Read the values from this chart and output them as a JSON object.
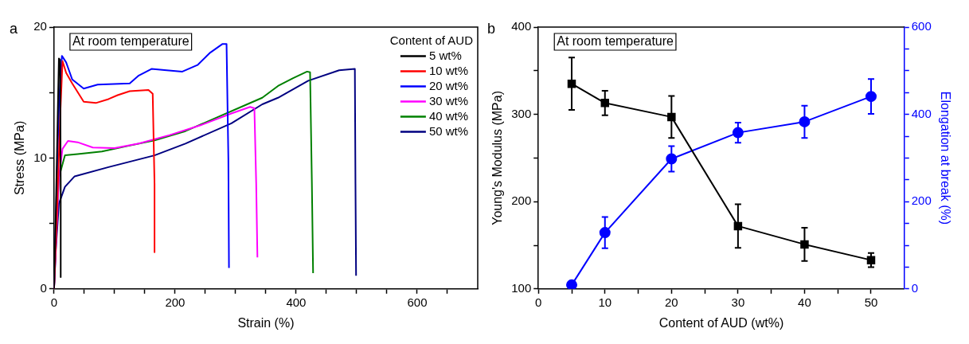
{
  "chart_data": [
    {
      "type": "line",
      "xlabel": "Strain (%)",
      "ylabel": "Stress (MPa)",
      "legend": "top right",
      "legend_title": "Content of AUD",
      "marker": "none",
      "grid": false,
      "annotations": [
        "a",
        "At room temperature"
      ],
      "xlim": [
        0,
        700
      ],
      "xticks": [
        0,
        {
          "value": 50,
          "label": null
        },
        {
          "value": 100,
          "label": null
        },
        {
          "value": 150,
          "label": null
        },
        200,
        {
          "value": 250,
          "label": null
        },
        {
          "value": 300,
          "label": null
        },
        {
          "value": 350,
          "label": null
        },
        400,
        {
          "value": 450,
          "label": null
        },
        {
          "value": 500,
          "label": null
        },
        {
          "value": 550,
          "label": null
        },
        600,
        {
          "value": 650,
          "label": null
        }
      ],
      "ylim": [
        0,
        20
      ],
      "yticks": [
        0,
        {
          "value": 5,
          "label": null
        },
        10,
        {
          "value": 15,
          "label": null
        },
        20
      ],
      "series": [
        {
          "name": "5 wt%",
          "color": "#000000",
          "x": [
            0,
            3,
            6,
            8,
            10,
            11,
            11
          ],
          "values": [
            0,
            6,
            13,
            17.6,
            17.5,
            8,
            0.9
          ]
        },
        {
          "name": "10 wt%",
          "color": "#ff0000",
          "x": [
            0,
            5,
            10,
            14,
            20,
            30,
            49,
            69,
            90,
            105,
            125,
            156,
            163,
            166,
            166
          ],
          "values": [
            0,
            6,
            13,
            17.4,
            16.5,
            15.7,
            14.3,
            14.2,
            14.5,
            14.8,
            15.1,
            15.2,
            14.9,
            8,
            2.8
          ]
        },
        {
          "name": "20 wt%",
          "color": "#0000ff",
          "x": [
            0,
            4,
            8,
            13,
            20,
            30,
            49,
            72,
            125,
            140,
            161,
            186,
            212,
            237,
            258,
            278,
            285,
            288,
            289
          ],
          "values": [
            0,
            7,
            14,
            17.8,
            17.3,
            16,
            15.3,
            15.6,
            15.7,
            16.3,
            16.8,
            16.7,
            16.6,
            17.1,
            18.05,
            18.7,
            18.7,
            10,
            1.6
          ]
        },
        {
          "name": "30 wt%",
          "color": "#ff00ff",
          "x": [
            0,
            8,
            14,
            23,
            39,
            64,
            100,
            140,
            191,
            242,
            293,
            324,
            331,
            334,
            336
          ],
          "values": [
            0,
            8.5,
            10.7,
            11.3,
            11.2,
            10.8,
            10.75,
            11.1,
            11.75,
            12.5,
            13.4,
            13.9,
            13.8,
            8,
            2.4
          ]
        },
        {
          "name": "40 wt%",
          "color": "#008000",
          "x": [
            0,
            3,
            8,
            18,
            39,
            79,
            120,
            166,
            217,
            319,
            344,
            370,
            395,
            418,
            423,
            426,
            428
          ],
          "values": [
            0,
            4,
            8.5,
            10.2,
            10.3,
            10.5,
            10.9,
            11.35,
            12.05,
            14.1,
            14.6,
            15.5,
            16.1,
            16.6,
            16.55,
            8,
            1.2
          ]
        },
        {
          "name": "50 wt%",
          "color": "#000080",
          "x": [
            0,
            3,
            8,
            18,
            34,
            90,
            166,
            217,
            293,
            344,
            370,
            420,
            471,
            497,
            498,
            499
          ],
          "values": [
            0,
            3,
            6.5,
            7.8,
            8.6,
            9.3,
            10.2,
            11.1,
            12.65,
            14.1,
            14.6,
            15.9,
            16.7,
            16.8,
            8,
            1.0
          ]
        }
      ]
    },
    {
      "type": "line",
      "xlabel": "Content of AUD (wt%)",
      "ylabel": "Young's Modulus (MPa)",
      "y2label": "Elongation at break (%)",
      "grid": false,
      "annotations": [
        "b",
        "At room temperature"
      ],
      "x": [
        5,
        10,
        20,
        30,
        40,
        50
      ],
      "xlim": [
        0,
        55
      ],
      "xticks": [
        0,
        {
          "value": 5,
          "label": null
        },
        10,
        {
          "value": 15,
          "label": null
        },
        20,
        {
          "value": 25,
          "label": null
        },
        30,
        {
          "value": 35,
          "label": null
        },
        40,
        {
          "value": 45,
          "label": null
        },
        50
      ],
      "ylim": [
        100,
        400
      ],
      "yticks": [
        100,
        {
          "value": 150,
          "label": null
        },
        200,
        {
          "value": 250,
          "label": null
        },
        300,
        {
          "value": 350,
          "label": null
        },
        400
      ],
      "y2lim": [
        0,
        600
      ],
      "y2ticks": [
        0,
        {
          "value": 50,
          "label": null
        },
        {
          "value": 100,
          "label": null
        },
        {
          "value": 150,
          "label": null
        },
        200,
        {
          "value": 250,
          "label": null
        },
        {
          "value": 300,
          "label": null
        },
        {
          "value": 350,
          "label": null
        },
        400,
        {
          "value": 450,
          "label": null
        },
        {
          "value": 500,
          "label": null
        },
        {
          "value": 550,
          "label": null
        },
        600
      ],
      "series": [
        {
          "color": "#000000",
          "marker": "square",
          "values": [
            335,
            313,
            297,
            172,
            151,
            133
          ],
          "errors": [
            30,
            14,
            24,
            25,
            19,
            8
          ]
        },
        {
          "color": "#0000ff",
          "marker": "circle",
          "axis": "y2",
          "values": [
            9,
            129,
            298,
            358,
            383,
            441
          ],
          "errors": [
            null,
            36,
            29,
            23,
            37,
            40
          ]
        }
      ]
    }
  ]
}
